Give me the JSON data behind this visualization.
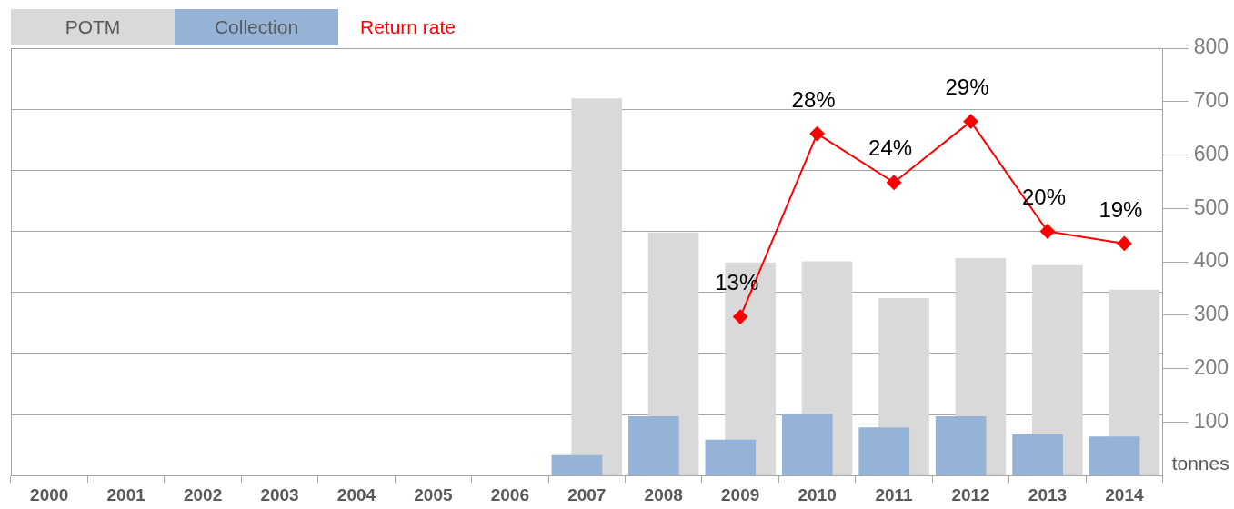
{
  "chart_data": {
    "type": "bar",
    "categories": [
      "2000",
      "2001",
      "2002",
      "2003",
      "2004",
      "2005",
      "2006",
      "2007",
      "2008",
      "2009",
      "2010",
      "2011",
      "2012",
      "2013",
      "2014"
    ],
    "series": [
      {
        "name": "POTM",
        "color": "#d9d9d9",
        "values": [
          null,
          null,
          null,
          null,
          null,
          null,
          null,
          706,
          455,
          399,
          401,
          332,
          407,
          394,
          348
        ]
      },
      {
        "name": "Collection",
        "color": "#95b3d7",
        "values": [
          null,
          null,
          null,
          null,
          null,
          null,
          null,
          38,
          111,
          67,
          115,
          90,
          111,
          77,
          73
        ]
      },
      {
        "name": "Return rate",
        "type": "line",
        "axis": "y2",
        "color": "#ff0000",
        "values": [
          null,
          null,
          null,
          null,
          null,
          null,
          null,
          null,
          null,
          13,
          28,
          24,
          29,
          20,
          19
        ],
        "value_labels": [
          null,
          null,
          null,
          null,
          null,
          null,
          null,
          null,
          null,
          "13%",
          "28%",
          "24%",
          "29%",
          "20%",
          "19%"
        ]
      }
    ],
    "ylabel": "tonnes",
    "ylim": [
      0,
      800
    ],
    "yticks": [
      100,
      200,
      300,
      400,
      500,
      600,
      700,
      800
    ],
    "y2lim": [
      0,
      35
    ],
    "grid": true,
    "legend": "top left",
    "marker": "diamond",
    "line_style": "solid"
  }
}
